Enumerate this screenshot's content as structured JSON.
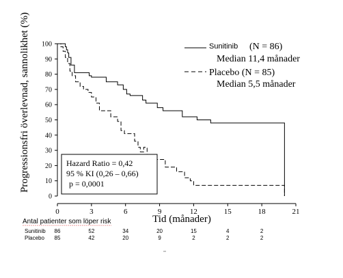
{
  "chart_data": {
    "type": "line",
    "title": "",
    "xlabel": "Tid (månader)",
    "ylabel": "Progressionsfri överlevnad, sannolikhet (%)",
    "xlim": [
      0,
      21
    ],
    "ylim": [
      0,
      100
    ],
    "xticks": [
      "0",
      "3",
      "6",
      "9",
      "12",
      "15",
      "18",
      "21"
    ],
    "yticks": [
      "0",
      "10",
      "20",
      "30",
      "40",
      "50",
      "60",
      "70",
      "80",
      "90",
      "100"
    ],
    "grid": false,
    "legend_position": "top-right",
    "series": [
      {
        "name": "Sunitinib",
        "label": "Sunitinib",
        "n_text": "(N = 86)",
        "median_text": "Median 11,4 månader",
        "color": "#000000",
        "style": "solid",
        "x": [
          0,
          0.6,
          0.7,
          0.8,
          0.9,
          1.0,
          1.2,
          1.5,
          2.5,
          2.8,
          3.0,
          4.3,
          5.0,
          5.3,
          5.8,
          6.1,
          6.4,
          7.3,
          7.5,
          7.8,
          8.8,
          9.3,
          10.2,
          11.0,
          11.4,
          12.3,
          13.5,
          20.0,
          20.0
        ],
        "y": [
          100,
          100,
          98,
          96,
          94,
          91,
          86,
          81,
          81,
          79,
          78,
          75,
          75,
          73,
          70,
          67,
          66,
          66,
          63,
          61,
          58,
          56,
          56,
          52,
          52,
          50,
          48,
          48,
          0
        ]
      },
      {
        "name": "Placebo",
        "label": "Placebo (N = 85)",
        "median_text": "Median 5,5 månader",
        "color": "#000000",
        "style": "dashed",
        "x": [
          0,
          0.3,
          0.5,
          0.7,
          0.9,
          1.1,
          1.3,
          1.6,
          2.0,
          2.3,
          2.7,
          3.0,
          3.4,
          3.7,
          4.1,
          4.7,
          5.3,
          5.6,
          5.9,
          6.2,
          6.8,
          7.1,
          7.3,
          7.6,
          7.9,
          8.2,
          9.0,
          9.5,
          10.5,
          11.2,
          11.7,
          12.0,
          13.5,
          20.0,
          20.0
        ],
        "y": [
          100,
          98,
          95,
          91,
          87,
          82,
          79,
          75,
          72,
          70,
          68,
          65,
          61,
          56,
          56,
          52,
          49,
          43,
          41,
          41,
          36,
          32,
          29,
          32,
          26,
          24,
          24,
          19,
          16,
          12,
          10,
          7,
          7,
          7,
          0
        ]
      }
    ],
    "annotation": {
      "lines": [
        "Hazard Ratio = 0,42",
        "95 % KI (0,26 – 0,66)",
        "p = 0,0001"
      ]
    },
    "risk_table": {
      "title": "Antal patienter som löper risk",
      "rows": [
        {
          "label": "Sunitinib",
          "values": [
            "86",
            "52",
            "34",
            "20",
            "15",
            "4",
            "2"
          ]
        },
        {
          "label": "Placebo",
          "values": [
            "85",
            "42",
            "20",
            "9",
            "2",
            "2",
            "2"
          ]
        }
      ]
    }
  }
}
